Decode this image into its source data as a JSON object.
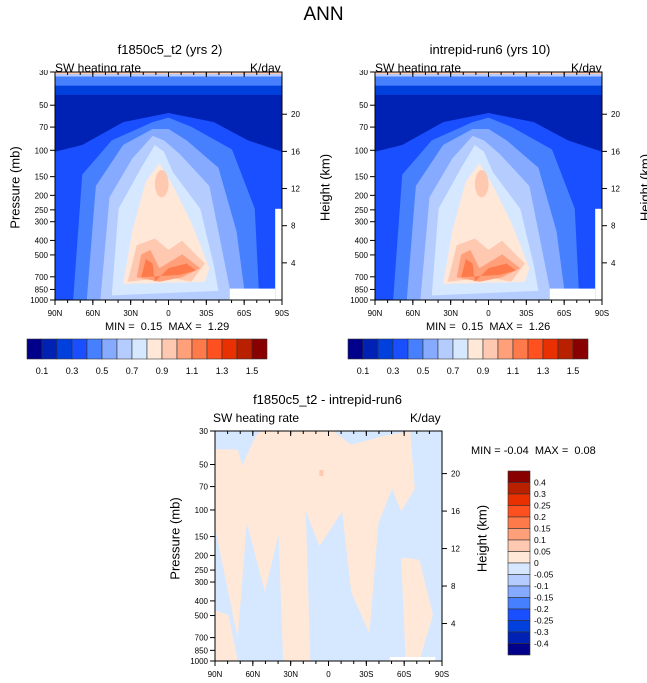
{
  "figure": {
    "title": "ANN"
  },
  "chart_data": [
    {
      "type": "heatmap",
      "id": "panel-model",
      "title": "f1850c5_t2 (yrs 2)",
      "left_label": "SW heating rate",
      "right_label": "K/day",
      "ylabel": "Pressure (mb)",
      "y2label": "Height (km)",
      "xticks": [
        "90N",
        "60N",
        "30N",
        "0",
        "30S",
        "60S",
        "90S"
      ],
      "yticks": [
        "30",
        "50",
        "70",
        "100",
        "150",
        "200",
        "250",
        "300",
        "400",
        "500",
        "700",
        "850",
        "1000"
      ],
      "y2ticks": [
        "20",
        "16",
        "12",
        "8",
        "4"
      ],
      "min_label": "MIN =",
      "min": "0.15",
      "max_label": "MAX =",
      "max": "1.29",
      "colorbar": {
        "labels": [
          "0.1",
          "0.3",
          "0.5",
          "0.7",
          "0.9",
          "1.1",
          "1.3",
          "1.5"
        ],
        "colors": [
          "#00008a",
          "#0022b4",
          "#0040dc",
          "#1a4fff",
          "#4680ff",
          "#86aaff",
          "#b5ccff",
          "#d6e8ff",
          "#ffe8d8",
          "#ffc8b0",
          "#ffa07a",
          "#ff7a4a",
          "#ff5020",
          "#e83000",
          "#b82000",
          "#880000"
        ]
      }
    },
    {
      "type": "heatmap",
      "id": "panel-obs",
      "title": "intrepid-run6 (yrs 10)",
      "left_label": "SW heating rate",
      "right_label": "K/day",
      "ylabel": "Pressure (mb)",
      "y2label": "Height (km)",
      "xticks": [
        "90N",
        "60N",
        "30N",
        "0",
        "30S",
        "60S",
        "90S"
      ],
      "yticks": [
        "30",
        "50",
        "70",
        "100",
        "150",
        "200",
        "250",
        "300",
        "400",
        "500",
        "700",
        "850",
        "1000"
      ],
      "y2ticks": [
        "20",
        "16",
        "12",
        "8",
        "4"
      ],
      "min_label": "MIN =",
      "min": "0.15",
      "max_label": "MAX =",
      "max": "1.26",
      "colorbar": {
        "labels": [
          "0.1",
          "0.3",
          "0.5",
          "0.7",
          "0.9",
          "1.1",
          "1.3",
          "1.5"
        ],
        "colors": [
          "#00008a",
          "#0022b4",
          "#0040dc",
          "#1a4fff",
          "#4680ff",
          "#86aaff",
          "#b5ccff",
          "#d6e8ff",
          "#ffe8d8",
          "#ffc8b0",
          "#ffa07a",
          "#ff7a4a",
          "#ff5020",
          "#e83000",
          "#b82000",
          "#880000"
        ]
      }
    },
    {
      "type": "heatmap",
      "id": "panel-diff",
      "title": "f1850c5_t2 - intrepid-run6",
      "left_label": "SW heating rate",
      "right_label": "K/day",
      "ylabel": "Pressure (mb)",
      "y2label": "Height (km)",
      "xticks": [
        "90N",
        "60N",
        "30N",
        "0",
        "30S",
        "60S",
        "90S"
      ],
      "yticks": [
        "30",
        "50",
        "70",
        "100",
        "150",
        "200",
        "250",
        "300",
        "400",
        "500",
        "700",
        "850",
        "1000"
      ],
      "y2ticks": [
        "20",
        "16",
        "12",
        "8",
        "4"
      ],
      "min_label": "MIN =",
      "min": "-0.04",
      "max_label": "MAX =",
      "max": "0.08",
      "colorbar": {
        "labels": [
          "0.4",
          "0.3",
          "0.25",
          "0.2",
          "0.15",
          "0.1",
          "0.05",
          "0",
          "-0.05",
          "-0.1",
          "-0.15",
          "-0.2",
          "-0.25",
          "-0.3",
          "-0.4"
        ],
        "colors": [
          "#880000",
          "#b82000",
          "#e83000",
          "#ff5020",
          "#ff7a4a",
          "#ffa07a",
          "#ffc8b0",
          "#ffe8d8",
          "#d6e8ff",
          "#b5ccff",
          "#86aaff",
          "#4680ff",
          "#1a4fff",
          "#0040dc",
          "#0022b4",
          "#00008a"
        ]
      }
    }
  ]
}
